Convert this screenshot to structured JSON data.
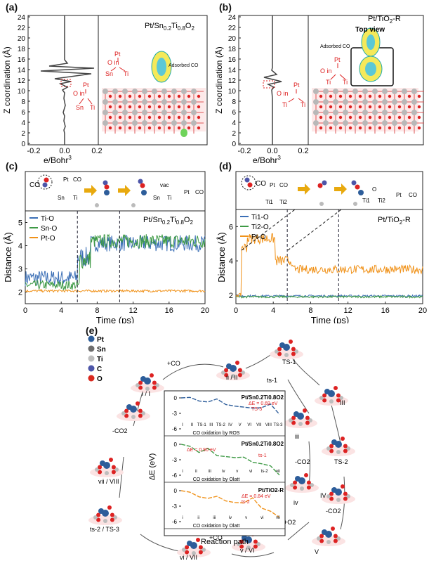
{
  "panel_a": {
    "label": "(a)",
    "title": "Pt/Sn0.2Ti0.8O2",
    "ylabel": "Z coordination (Å)",
    "xlabel": "e/Bohr3",
    "yticks": [
      "0",
      "2",
      "4",
      "6",
      "8",
      "10",
      "12",
      "14",
      "16",
      "18",
      "20",
      "22",
      "24"
    ],
    "xticks": [
      "-0.2",
      "0.0",
      "0.2"
    ],
    "adsorbed": "Adsorbed CO",
    "mol1": [
      "Pt",
      "O in",
      "Sn",
      "Ti"
    ],
    "mol2": [
      "Pt",
      "O in",
      "Sn",
      "Ti"
    ]
  },
  "panel_b": {
    "label": "(b)",
    "title": "Pt/TiO2-R",
    "ylabel": "Z coordination (Å)",
    "xlabel": "e/Bohr3",
    "yticks": [
      "0",
      "2",
      "4",
      "6",
      "8",
      "10",
      "12",
      "14",
      "16",
      "18",
      "20",
      "22",
      "24"
    ],
    "xticks": [
      "-0.2",
      "0.0",
      "0.2"
    ],
    "topview": "Top view",
    "adsorbed": "Adsorbed CO",
    "mol1": [
      "Pt",
      "O in",
      "Ti",
      "Ti"
    ],
    "mol2": [
      "Pt",
      "O in",
      "Ti",
      "Ti"
    ]
  },
  "panel_c": {
    "label": "(c)",
    "title": "Pt/Sn0.2Ti0.8O2",
    "ylabel": "Distance (Å)",
    "xlabel": "Time (ps)",
    "schematic": [
      "CO",
      "Pt",
      "CO",
      "Sn",
      "Ti",
      "vac",
      "Sn",
      "Ti",
      "Pt",
      "CO"
    ],
    "chart_data": {
      "type": "line",
      "xlim": [
        0,
        20
      ],
      "ylim": [
        1.5,
        5.5
      ],
      "xticks": [
        "0",
        "4",
        "8",
        "12",
        "16",
        "20"
      ],
      "yticks": [
        "2",
        "3",
        "4",
        "5"
      ],
      "series": [
        {
          "name": "Ti-O",
          "color": "#3b6fb6",
          "phases": [
            [
              0,
              5.8,
              2.6,
              0.35
            ],
            [
              5.8,
              7.2,
              3.5,
              0.45
            ],
            [
              7.2,
              20,
              4.1,
              0.35
            ]
          ]
        },
        {
          "name": "Sn-O",
          "color": "#3e9a45",
          "phases": [
            [
              0,
              6.0,
              2.3,
              0.2
            ],
            [
              6.0,
              7.3,
              3.4,
              0.4
            ],
            [
              7.3,
              20,
              4.2,
              0.3
            ]
          ]
        },
        {
          "name": "Pt-O",
          "color": "#f0921a",
          "phases": [
            [
              0,
              20,
              2.05,
              0.05
            ]
          ]
        }
      ],
      "vlines": [
        5.8,
        10.5
      ]
    }
  },
  "panel_d": {
    "label": "(d)",
    "title": "Pt/TiO2-R",
    "ylabel": "Distance (Å)",
    "xlabel": "Time (ps)",
    "schematic": [
      "CO",
      "Pt",
      "CO",
      "Ti1",
      "Ti2",
      "O",
      "Ti1",
      "Ti2",
      "Pt",
      "CO"
    ],
    "chart_data": {
      "type": "line",
      "xlim": [
        0,
        20
      ],
      "ylim": [
        1.5,
        7
      ],
      "xticks": [
        "0",
        "4",
        "8",
        "12",
        "16",
        "20"
      ],
      "yticks": [
        "2",
        "4",
        "6"
      ],
      "series": [
        {
          "name": "Ti1-O",
          "color": "#3b6fb6",
          "phases": [
            [
              0,
              20,
              1.95,
              0.06
            ]
          ]
        },
        {
          "name": "Ti2-O",
          "color": "#3e9a45",
          "phases": [
            [
              0,
              20,
              1.9,
              0.06
            ]
          ]
        },
        {
          "name": "Pt-O",
          "color": "#f0921a",
          "phases": [
            [
              0,
              0.6,
              2.0,
              0.1
            ],
            [
              0.6,
              1.2,
              4.8,
              0.3
            ],
            [
              1.2,
              4.2,
              5.3,
              0.3
            ],
            [
              4.2,
              6.0,
              4.0,
              0.3
            ],
            [
              6.0,
              20,
              3.5,
              0.25
            ]
          ]
        }
      ],
      "vlines": [
        5.5,
        11.0
      ]
    }
  },
  "panel_e": {
    "label": "(e)",
    "legend": [
      "Pt",
      "Sn",
      "Ti",
      "C",
      "O"
    ],
    "legend_colors": [
      "#2d5d9a",
      "#6d6d6d",
      "#bdbdbd",
      "#4d55a8",
      "#d9281e"
    ],
    "states": [
      "i / I",
      "ii / II",
      "TS-1",
      "ts-1",
      "III",
      "iii",
      "TS-2",
      "-CO2",
      "iv",
      "IV",
      "-CO2",
      "+O2",
      "V",
      "v / VI",
      "+CO",
      "vi / VII",
      "ts-2 / TS-3",
      "vii / VIII",
      "-CO2",
      "+CO"
    ],
    "inner": {
      "ylabel": "ΔE (eV)",
      "xlabel": "Reaction path",
      "sub": [
        {
          "title": "Pt/Sn0.2Ti0.8O2",
          "barrier": "ΔE = 0.69 eV",
          "ts": "TS-3",
          "caption": "CO oxidation by ROS",
          "color": "#2d5d9a",
          "yticks": [
            "0",
            "-3",
            "-6"
          ],
          "labels": [
            "I",
            "II",
            "TS-1",
            "III",
            "TS-2",
            "IV",
            "V",
            "VI",
            "VII",
            "VIII",
            "TS-3"
          ]
        },
        {
          "title": "Pt/Sn0.2Ti0.8O2",
          "barrier": "ΔE = 0.90 eV",
          "ts": "ts-1",
          "caption": "CO oxidation by Olatt",
          "color": "#3e9a45",
          "yticks": [
            "0",
            "-3",
            "-6"
          ],
          "labels": [
            "i",
            "ii",
            "iii",
            "iv",
            "v",
            "vi",
            "ts-2",
            "vii"
          ]
        },
        {
          "title": "Pt/TiO2-R",
          "barrier": "ΔE = 0.84 eV",
          "ts": "ts-2",
          "caption": "CO oxidation by Olatt",
          "color": "#f0921a",
          "yticks": [
            "0",
            "-3",
            "-6"
          ],
          "labels": [
            "i",
            "ii",
            "iii",
            "iv",
            "v",
            "vi",
            "vii"
          ]
        }
      ]
    }
  }
}
